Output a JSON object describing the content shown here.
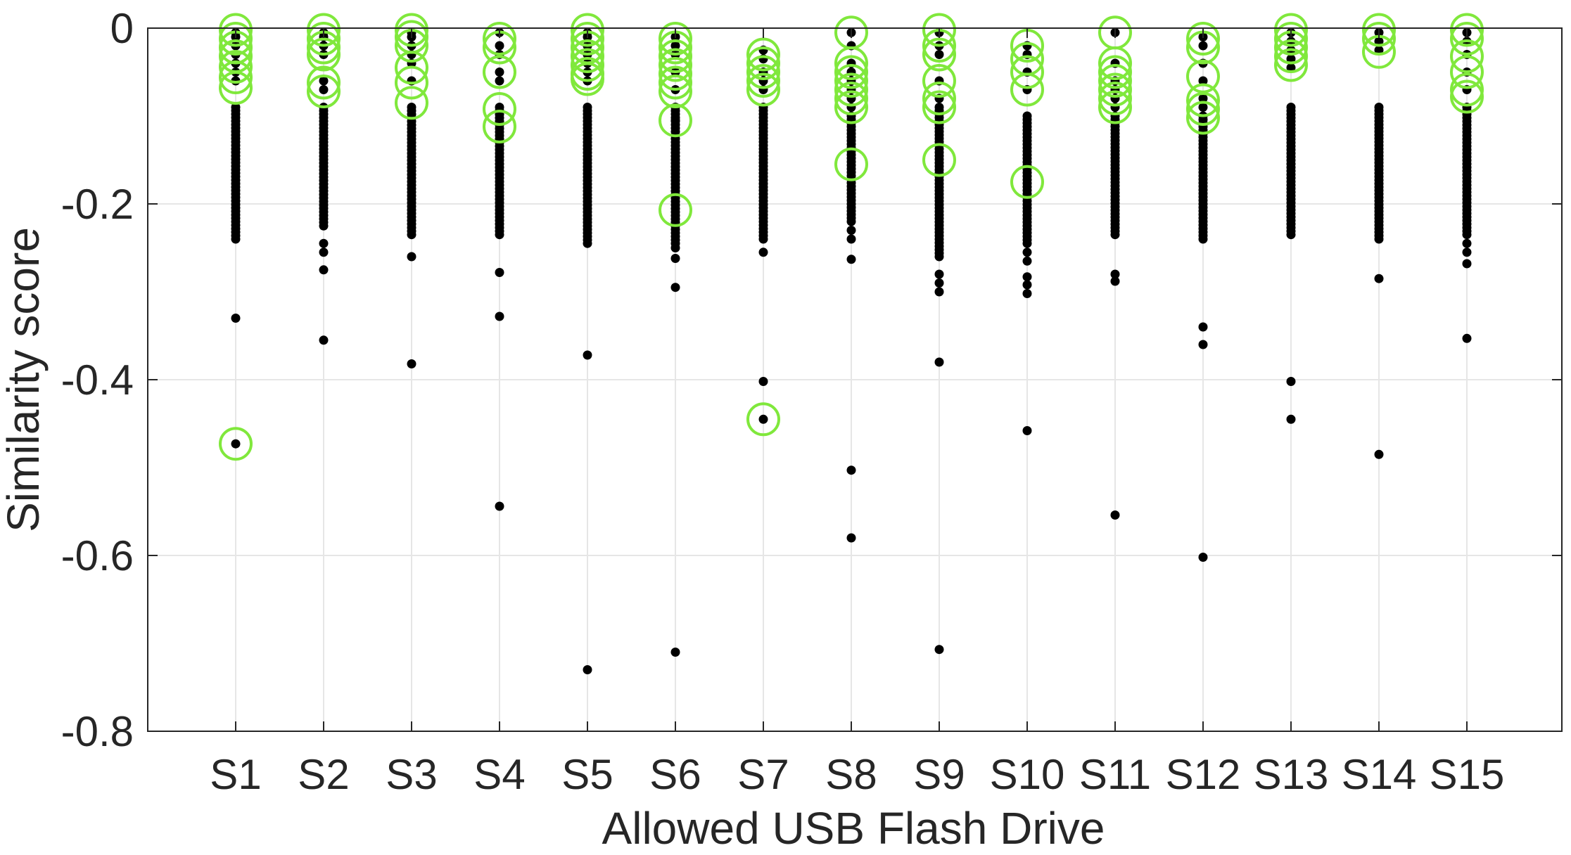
{
  "chart_data": {
    "type": "scatter",
    "xlabel": "Allowed USB Flash Drive",
    "ylabel": "Similarity score",
    "categories": [
      "S1",
      "S2",
      "S3",
      "S4",
      "S5",
      "S6",
      "S7",
      "S8",
      "S9",
      "S10",
      "S11",
      "S12",
      "S13",
      "S14",
      "S15"
    ],
    "ylim": [
      -0.8,
      0
    ],
    "yticks": [
      0,
      -0.2,
      -0.4,
      -0.6,
      -0.8
    ],
    "ytick_labels": [
      "0",
      "-0.2",
      "-0.4",
      "-0.6",
      "-0.8"
    ],
    "grid": true,
    "colors": {
      "dots": "#000000",
      "highlight": "#80e83c",
      "grid": "#e6e6e6",
      "axis": "#262626"
    },
    "series": [
      {
        "marker": "dot",
        "points": [
          {
            "category": "S1",
            "dense_range": [
              -0.24,
              -0.09
            ],
            "values": [
              -0.005,
              -0.01,
              -0.02,
              -0.03,
              -0.04,
              -0.05,
              -0.06,
              -0.33,
              -0.473
            ]
          },
          {
            "category": "S2",
            "dense_range": [
              -0.225,
              -0.09
            ],
            "values": [
              -0.005,
              -0.01,
              -0.02,
              -0.03,
              -0.06,
              -0.07,
              -0.245,
              -0.255,
              -0.275,
              -0.355
            ]
          },
          {
            "category": "S3",
            "dense_range": [
              -0.235,
              -0.09
            ],
            "values": [
              -0.005,
              -0.01,
              -0.02,
              -0.03,
              -0.04,
              -0.06,
              -0.26,
              -0.382
            ]
          },
          {
            "category": "S4",
            "dense_range": [
              -0.235,
              -0.09
            ],
            "values": [
              -0.005,
              -0.02,
              -0.03,
              -0.05,
              -0.06,
              -0.278,
              -0.328,
              -0.544
            ]
          },
          {
            "category": "S5",
            "dense_range": [
              -0.245,
              -0.09
            ],
            "values": [
              -0.005,
              -0.01,
              -0.02,
              -0.03,
              -0.04,
              -0.05,
              -0.06,
              -0.372,
              -0.73
            ]
          },
          {
            "category": "S6",
            "dense_range": [
              -0.245,
              -0.09
            ],
            "values": [
              -0.01,
              -0.02,
              -0.03,
              -0.05,
              -0.07,
              -0.105,
              -0.25,
              -0.262,
              -0.295,
              -0.71
            ]
          },
          {
            "category": "S7",
            "dense_range": [
              -0.24,
              -0.09
            ],
            "values": [
              -0.025,
              -0.035,
              -0.05,
              -0.06,
              -0.07,
              -0.255,
              -0.402,
              -0.445
            ]
          },
          {
            "category": "S8",
            "dense_range": [
              -0.22,
              -0.1
            ],
            "values": [
              -0.005,
              -0.02,
              -0.04,
              -0.05,
              -0.06,
              -0.07,
              -0.08,
              -0.09,
              -0.23,
              -0.24,
              -0.263,
              -0.503,
              -0.58
            ]
          },
          {
            "category": "S9",
            "dense_range": [
              -0.26,
              -0.09
            ],
            "values": [
              -0.005,
              -0.02,
              -0.03,
              -0.06,
              -0.08,
              -0.28,
              -0.29,
              -0.3,
              -0.38,
              -0.707
            ]
          },
          {
            "category": "S10",
            "dense_range": [
              -0.245,
              -0.1
            ],
            "values": [
              -0.02,
              -0.03,
              -0.05,
              -0.07,
              -0.255,
              -0.265,
              -0.283,
              -0.292,
              -0.302,
              -0.458
            ]
          },
          {
            "category": "S11",
            "dense_range": [
              -0.235,
              -0.1
            ],
            "values": [
              -0.005,
              -0.04,
              -0.06,
              -0.07,
              -0.08,
              -0.09,
              -0.28,
              -0.288,
              -0.554
            ]
          },
          {
            "category": "S12",
            "dense_range": [
              -0.24,
              -0.1
            ],
            "values": [
              -0.01,
              -0.02,
              -0.04,
              -0.06,
              -0.08,
              -0.09,
              -0.34,
              -0.36,
              -0.602
            ]
          },
          {
            "category": "S13",
            "dense_range": [
              -0.235,
              -0.09
            ],
            "values": [
              -0.005,
              -0.015,
              -0.025,
              -0.035,
              -0.045,
              -0.402,
              -0.445
            ]
          },
          {
            "category": "S14",
            "dense_range": [
              -0.24,
              -0.09
            ],
            "values": [
              -0.005,
              -0.015,
              -0.025,
              -0.285,
              -0.485
            ]
          },
          {
            "category": "S15",
            "dense_range": [
              -0.235,
              -0.09
            ],
            "values": [
              -0.005,
              -0.015,
              -0.03,
              -0.05,
              -0.07,
              -0.245,
              -0.255,
              -0.268,
              -0.353
            ]
          }
        ]
      },
      {
        "marker": "circle",
        "points": [
          {
            "category": "S1",
            "values": [
              -0.002,
              -0.012,
              -0.022,
              -0.032,
              -0.044,
              -0.056,
              -0.068,
              -0.473
            ]
          },
          {
            "category": "S2",
            "values": [
              -0.002,
              -0.012,
              -0.022,
              -0.03,
              -0.062,
              -0.072
            ]
          },
          {
            "category": "S3",
            "values": [
              -0.002,
              -0.01,
              -0.02,
              -0.045,
              -0.062,
              -0.085
            ]
          },
          {
            "category": "S4",
            "values": [
              -0.012,
              -0.022,
              -0.05,
              -0.092,
              -0.112
            ]
          },
          {
            "category": "S5",
            "values": [
              -0.002,
              -0.012,
              -0.022,
              -0.032,
              -0.042,
              -0.052,
              -0.058
            ]
          },
          {
            "category": "S6",
            "values": [
              -0.012,
              -0.022,
              -0.032,
              -0.042,
              -0.052,
              -0.062,
              -0.072,
              -0.105,
              -0.207
            ]
          },
          {
            "category": "S7",
            "values": [
              -0.03,
              -0.04,
              -0.05,
              -0.06,
              -0.07,
              -0.445
            ]
          },
          {
            "category": "S8",
            "values": [
              -0.005,
              -0.04,
              -0.05,
              -0.06,
              -0.07,
              -0.08,
              -0.09,
              -0.155
            ]
          },
          {
            "category": "S9",
            "values": [
              -0.002,
              -0.02,
              -0.03,
              -0.06,
              -0.08,
              -0.09,
              -0.15
            ]
          },
          {
            "category": "S10",
            "values": [
              -0.02,
              -0.035,
              -0.05,
              -0.07,
              -0.175
            ]
          },
          {
            "category": "S11",
            "values": [
              -0.005,
              -0.04,
              -0.05,
              -0.06,
              -0.07,
              -0.08,
              -0.09
            ]
          },
          {
            "category": "S12",
            "values": [
              -0.012,
              -0.022,
              -0.055,
              -0.082,
              -0.092,
              -0.102
            ]
          },
          {
            "category": "S13",
            "values": [
              -0.002,
              -0.012,
              -0.022,
              -0.032,
              -0.042
            ]
          },
          {
            "category": "S14",
            "values": [
              -0.002,
              -0.012,
              -0.027
            ]
          },
          {
            "category": "S15",
            "values": [
              -0.002,
              -0.012,
              -0.032,
              -0.05,
              -0.07,
              -0.078
            ]
          }
        ]
      }
    ]
  }
}
